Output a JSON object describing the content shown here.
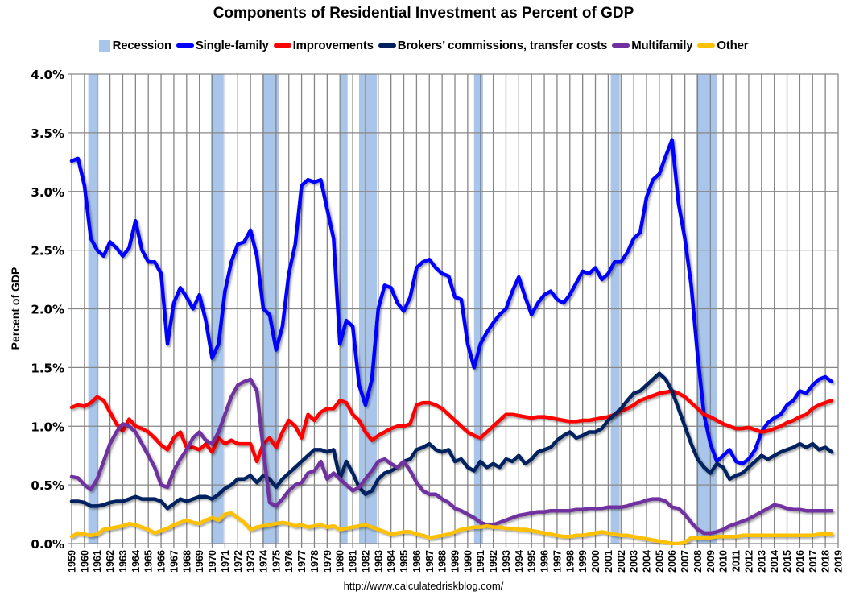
{
  "chart_data": {
    "type": "line",
    "title": "Components of Residential Investment as Percent of GDP",
    "xlabel": "",
    "ylabel": "Percent of GDP",
    "source": "http://www.calculatedriskblog.com/",
    "xlim": [
      1959,
      2019
    ],
    "ylim": [
      0,
      4.0
    ],
    "y_ticks": [
      0,
      0.5,
      1.0,
      1.5,
      2.0,
      2.5,
      3.0,
      3.5,
      4.0
    ],
    "y_tick_labels": [
      "0.0%",
      "0.5%",
      "1.0%",
      "1.5%",
      "2.0%",
      "2.5%",
      "3.0%",
      "3.5%",
      "4.0%"
    ],
    "x_tick_labels": [
      "1959",
      "1960",
      "1961",
      "1962",
      "1963",
      "1964",
      "1965",
      "1966",
      "1967",
      "1968",
      "1969",
      "1970",
      "1971",
      "1972",
      "1973",
      "1974",
      "1975",
      "1976",
      "1977",
      "1978",
      "1979",
      "1980",
      "1981",
      "1982",
      "1983",
      "1984",
      "1985",
      "1986",
      "1987",
      "1988",
      "1989",
      "1990",
      "1991",
      "1992",
      "1993",
      "1994",
      "1995",
      "1996",
      "1997",
      "1998",
      "1999",
      "2000",
      "2001",
      "2002",
      "2003",
      "2004",
      "2005",
      "2006",
      "2007",
      "2008",
      "2009",
      "2010",
      "2011",
      "2012",
      "2013",
      "2014",
      "2015",
      "2016",
      "2017",
      "2018",
      "2019"
    ],
    "grid": "vertical-and-horizontal",
    "legend_position": "top-center",
    "legend": [
      {
        "name": "Recession",
        "kind": "box",
        "color": "#a9c6ea"
      },
      {
        "name": "Single-family",
        "kind": "line",
        "color": "#0000ff"
      },
      {
        "name": "Improvements",
        "kind": "line",
        "color": "#ff0000"
      },
      {
        "name": "Brokers’ commissions, transfer costs",
        "kind": "line",
        "color": "#002060"
      },
      {
        "name": "Multifamily",
        "kind": "line",
        "color": "#7030a0"
      },
      {
        "name": "Other",
        "kind": "line",
        "color": "#ffc000"
      }
    ],
    "recessions": [
      [
        1960.3,
        1961.1
      ],
      [
        1969.9,
        1970.9
      ],
      [
        1973.9,
        1975.2
      ],
      [
        1980.0,
        1980.6
      ],
      [
        1981.5,
        1982.9
      ],
      [
        1990.5,
        1991.2
      ],
      [
        2001.2,
        2001.9
      ],
      [
        2007.9,
        2009.5
      ]
    ],
    "x": [
      1959.0,
      1959.5,
      1960.0,
      1960.5,
      1961.0,
      1961.5,
      1962.0,
      1962.5,
      1963.0,
      1963.5,
      1964.0,
      1964.5,
      1965.0,
      1965.5,
      1966.0,
      1966.5,
      1967.0,
      1967.5,
      1968.0,
      1968.5,
      1969.0,
      1969.5,
      1970.0,
      1970.5,
      1971.0,
      1971.5,
      1972.0,
      1972.5,
      1973.0,
      1973.5,
      1974.0,
      1974.5,
      1975.0,
      1975.5,
      1976.0,
      1976.5,
      1977.0,
      1977.5,
      1978.0,
      1978.5,
      1979.0,
      1979.5,
      1980.0,
      1980.5,
      1981.0,
      1981.5,
      1982.0,
      1982.5,
      1983.0,
      1983.5,
      1984.0,
      1984.5,
      1985.0,
      1985.5,
      1986.0,
      1986.5,
      1987.0,
      1987.5,
      1988.0,
      1988.5,
      1989.0,
      1989.5,
      1990.0,
      1990.5,
      1991.0,
      1991.5,
      1992.0,
      1992.5,
      1993.0,
      1993.5,
      1994.0,
      1994.5,
      1995.0,
      1995.5,
      1996.0,
      1996.5,
      1997.0,
      1997.5,
      1998.0,
      1998.5,
      1999.0,
      1999.5,
      2000.0,
      2000.5,
      2001.0,
      2001.5,
      2002.0,
      2002.5,
      2003.0,
      2003.5,
      2004.0,
      2004.5,
      2005.0,
      2005.5,
      2006.0,
      2006.5,
      2007.0,
      2007.5,
      2008.0,
      2008.5,
      2009.0,
      2009.5,
      2010.0,
      2010.5,
      2011.0,
      2011.5,
      2012.0,
      2012.5,
      2013.0,
      2013.5,
      2014.0,
      2014.5,
      2015.0,
      2015.5,
      2016.0,
      2016.5,
      2017.0,
      2017.5,
      2018.0,
      2018.5
    ],
    "series": [
      {
        "name": "Single-family",
        "color": "#0000ff",
        "values": [
          3.26,
          3.28,
          3.05,
          2.6,
          2.5,
          2.45,
          2.57,
          2.52,
          2.45,
          2.52,
          2.75,
          2.5,
          2.4,
          2.4,
          2.3,
          1.7,
          2.05,
          2.18,
          2.1,
          2.0,
          2.12,
          1.9,
          1.58,
          1.7,
          2.15,
          2.4,
          2.55,
          2.57,
          2.67,
          2.45,
          2.0,
          1.95,
          1.65,
          1.85,
          2.3,
          2.55,
          3.05,
          3.1,
          3.08,
          3.1,
          2.85,
          2.6,
          1.7,
          1.9,
          1.85,
          1.35,
          1.18,
          1.4,
          2.0,
          2.2,
          2.18,
          2.05,
          1.98,
          2.1,
          2.35,
          2.4,
          2.42,
          2.35,
          2.3,
          2.28,
          2.1,
          2.08,
          1.7,
          1.5,
          1.7,
          1.8,
          1.88,
          1.95,
          2.0,
          2.15,
          2.27,
          2.1,
          1.95,
          2.05,
          2.12,
          2.15,
          2.08,
          2.05,
          2.12,
          2.22,
          2.32,
          2.3,
          2.35,
          2.25,
          2.3,
          2.4,
          2.4,
          2.48,
          2.6,
          2.65,
          2.95,
          3.1,
          3.15,
          3.3,
          3.44,
          2.9,
          2.6,
          2.2,
          1.6,
          1.1,
          0.85,
          0.7,
          0.75,
          0.8,
          0.7,
          0.68,
          0.72,
          0.8,
          0.95,
          1.03,
          1.07,
          1.1,
          1.18,
          1.22,
          1.3,
          1.28,
          1.35,
          1.4,
          1.42,
          1.38
        ]
      },
      {
        "name": "Improvements",
        "color": "#ff0000",
        "values": [
          1.16,
          1.18,
          1.17,
          1.2,
          1.25,
          1.22,
          1.12,
          1.02,
          0.96,
          1.06,
          1.0,
          0.98,
          0.95,
          0.9,
          0.84,
          0.8,
          0.9,
          0.95,
          0.82,
          0.82,
          0.8,
          0.85,
          0.78,
          0.9,
          0.85,
          0.88,
          0.85,
          0.85,
          0.85,
          0.7,
          0.85,
          0.9,
          0.82,
          0.95,
          1.05,
          1.0,
          0.9,
          1.1,
          1.05,
          1.12,
          1.15,
          1.15,
          1.22,
          1.2,
          1.1,
          1.05,
          0.95,
          0.88,
          0.92,
          0.95,
          0.98,
          1.0,
          1.0,
          1.02,
          1.18,
          1.2,
          1.2,
          1.18,
          1.15,
          1.1,
          1.05,
          1.0,
          0.95,
          0.92,
          0.9,
          0.95,
          1.0,
          1.05,
          1.1,
          1.1,
          1.09,
          1.08,
          1.07,
          1.08,
          1.08,
          1.07,
          1.06,
          1.05,
          1.04,
          1.04,
          1.05,
          1.05,
          1.06,
          1.07,
          1.08,
          1.1,
          1.13,
          1.15,
          1.18,
          1.22,
          1.24,
          1.26,
          1.28,
          1.29,
          1.3,
          1.28,
          1.25,
          1.2,
          1.15,
          1.1,
          1.08,
          1.05,
          1.02,
          1.0,
          0.98,
          0.98,
          0.99,
          0.97,
          0.95,
          0.96,
          0.98,
          1.0,
          1.03,
          1.05,
          1.08,
          1.1,
          1.15,
          1.18,
          1.2,
          1.22
        ]
      },
      {
        "name": "Brokers’ commissions, transfer costs",
        "color": "#002060",
        "values": [
          0.36,
          0.36,
          0.35,
          0.32,
          0.32,
          0.33,
          0.35,
          0.36,
          0.36,
          0.38,
          0.4,
          0.38,
          0.38,
          0.38,
          0.36,
          0.3,
          0.34,
          0.38,
          0.36,
          0.38,
          0.4,
          0.4,
          0.38,
          0.42,
          0.47,
          0.5,
          0.55,
          0.55,
          0.58,
          0.52,
          0.58,
          0.55,
          0.48,
          0.55,
          0.6,
          0.65,
          0.7,
          0.75,
          0.8,
          0.8,
          0.78,
          0.8,
          0.55,
          0.7,
          0.6,
          0.48,
          0.42,
          0.45,
          0.55,
          0.6,
          0.62,
          0.65,
          0.7,
          0.72,
          0.8,
          0.82,
          0.85,
          0.8,
          0.78,
          0.8,
          0.7,
          0.72,
          0.65,
          0.62,
          0.7,
          0.65,
          0.68,
          0.65,
          0.72,
          0.7,
          0.75,
          0.68,
          0.72,
          0.78,
          0.8,
          0.82,
          0.88,
          0.92,
          0.95,
          0.9,
          0.92,
          0.95,
          0.95,
          0.98,
          1.05,
          1.1,
          1.15,
          1.22,
          1.28,
          1.3,
          1.35,
          1.4,
          1.45,
          1.4,
          1.3,
          1.15,
          1.0,
          0.85,
          0.72,
          0.65,
          0.6,
          0.68,
          0.65,
          0.55,
          0.58,
          0.6,
          0.65,
          0.7,
          0.75,
          0.72,
          0.75,
          0.78,
          0.8,
          0.82,
          0.85,
          0.82,
          0.85,
          0.8,
          0.82,
          0.78
        ]
      },
      {
        "name": "Multifamily",
        "color": "#7030a0",
        "values": [
          0.57,
          0.56,
          0.5,
          0.46,
          0.55,
          0.7,
          0.85,
          0.95,
          1.02,
          1.0,
          0.95,
          0.85,
          0.75,
          0.65,
          0.5,
          0.48,
          0.62,
          0.72,
          0.8,
          0.9,
          0.95,
          0.88,
          0.85,
          0.95,
          1.1,
          1.25,
          1.35,
          1.38,
          1.4,
          1.3,
          0.8,
          0.35,
          0.32,
          0.38,
          0.45,
          0.5,
          0.52,
          0.6,
          0.62,
          0.7,
          0.55,
          0.6,
          0.55,
          0.5,
          0.45,
          0.48,
          0.55,
          0.62,
          0.7,
          0.72,
          0.68,
          0.65,
          0.7,
          0.62,
          0.52,
          0.45,
          0.42,
          0.42,
          0.38,
          0.35,
          0.3,
          0.28,
          0.25,
          0.22,
          0.18,
          0.16,
          0.16,
          0.18,
          0.2,
          0.22,
          0.24,
          0.25,
          0.26,
          0.27,
          0.27,
          0.28,
          0.28,
          0.28,
          0.28,
          0.29,
          0.29,
          0.3,
          0.3,
          0.3,
          0.31,
          0.31,
          0.31,
          0.32,
          0.34,
          0.35,
          0.37,
          0.38,
          0.38,
          0.36,
          0.31,
          0.3,
          0.25,
          0.18,
          0.12,
          0.09,
          0.09,
          0.1,
          0.12,
          0.15,
          0.17,
          0.19,
          0.21,
          0.24,
          0.27,
          0.3,
          0.33,
          0.32,
          0.3,
          0.29,
          0.29,
          0.28,
          0.28,
          0.28,
          0.28,
          0.28
        ]
      },
      {
        "name": "Other",
        "color": "#ffc000",
        "values": [
          0.06,
          0.09,
          0.08,
          0.07,
          0.08,
          0.12,
          0.13,
          0.14,
          0.15,
          0.17,
          0.16,
          0.14,
          0.12,
          0.09,
          0.11,
          0.13,
          0.16,
          0.18,
          0.2,
          0.18,
          0.17,
          0.2,
          0.22,
          0.2,
          0.25,
          0.26,
          0.22,
          0.18,
          0.12,
          0.14,
          0.15,
          0.16,
          0.17,
          0.18,
          0.17,
          0.15,
          0.16,
          0.14,
          0.15,
          0.16,
          0.14,
          0.15,
          0.12,
          0.13,
          0.14,
          0.15,
          0.16,
          0.14,
          0.12,
          0.1,
          0.08,
          0.09,
          0.1,
          0.1,
          0.08,
          0.07,
          0.05,
          0.06,
          0.07,
          0.08,
          0.1,
          0.12,
          0.13,
          0.14,
          0.14,
          0.15,
          0.14,
          0.14,
          0.13,
          0.13,
          0.12,
          0.12,
          0.11,
          0.1,
          0.09,
          0.08,
          0.07,
          0.06,
          0.06,
          0.07,
          0.07,
          0.08,
          0.09,
          0.1,
          0.09,
          0.08,
          0.07,
          0.07,
          0.06,
          0.05,
          0.04,
          0.03,
          0.02,
          0.01,
          0.0,
          0.0,
          0.01,
          0.05,
          0.05,
          0.05,
          0.05,
          0.06,
          0.06,
          0.06,
          0.06,
          0.07,
          0.07,
          0.07,
          0.07,
          0.07,
          0.07,
          0.07,
          0.07,
          0.07,
          0.07,
          0.07,
          0.07,
          0.08,
          0.08,
          0.08
        ]
      }
    ]
  }
}
